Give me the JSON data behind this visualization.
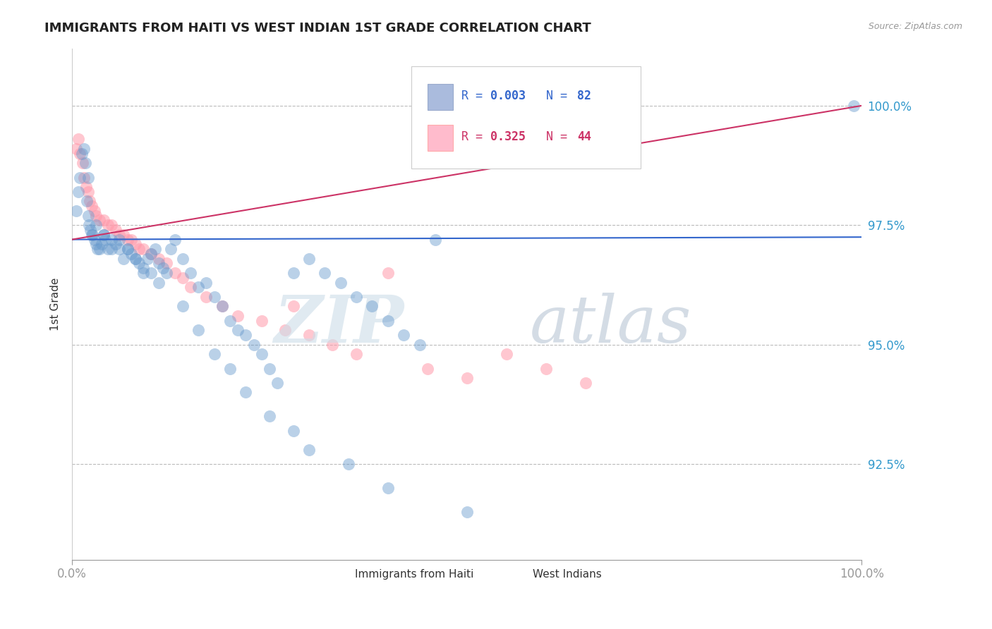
{
  "title": "IMMIGRANTS FROM HAITI VS WEST INDIAN 1ST GRADE CORRELATION CHART",
  "source_text": "Source: ZipAtlas.com",
  "ylabel": "1st Grade",
  "xlim": [
    0.0,
    100.0
  ],
  "ylim": [
    90.5,
    101.2
  ],
  "yticks": [
    92.5,
    95.0,
    97.5,
    100.0
  ],
  "ytick_labels": [
    "92.5%",
    "95.0%",
    "97.5%",
    "100.0%"
  ],
  "xticks": [
    0.0,
    100.0
  ],
  "xtick_labels": [
    "0.0%",
    "100.0%"
  ],
  "blue_color": "#6699CC",
  "pink_color": "#FF99AA",
  "trend_blue_color": "#3366CC",
  "trend_pink_color": "#CC3366",
  "watermark_zip": "ZIP",
  "watermark_atlas": "atlas",
  "legend_label1": "Immigrants from Haiti",
  "legend_label2": "West Indians",
  "blue_scatter_x": [
    0.5,
    0.8,
    1.0,
    1.2,
    1.5,
    1.7,
    1.9,
    2.0,
    2.1,
    2.3,
    2.5,
    2.6,
    2.8,
    3.0,
    3.2,
    3.5,
    3.7,
    4.0,
    4.2,
    4.5,
    5.0,
    5.5,
    6.0,
    6.5,
    7.0,
    7.5,
    8.0,
    8.5,
    9.0,
    9.5,
    10.0,
    10.5,
    11.0,
    11.5,
    12.0,
    12.5,
    13.0,
    14.0,
    15.0,
    16.0,
    17.0,
    18.0,
    19.0,
    20.0,
    21.0,
    22.0,
    23.0,
    24.0,
    25.0,
    26.0,
    28.0,
    30.0,
    32.0,
    34.0,
    36.0,
    38.0,
    40.0,
    42.0,
    44.0,
    46.0,
    2.0,
    3.0,
    4.0,
    5.0,
    6.0,
    7.0,
    8.0,
    9.0,
    10.0,
    11.0,
    14.0,
    16.0,
    18.0,
    20.0,
    22.0,
    25.0,
    28.0,
    30.0,
    35.0,
    40.0,
    50.0,
    99.0
  ],
  "blue_scatter_y": [
    97.8,
    98.2,
    98.5,
    99.0,
    99.1,
    98.8,
    98.0,
    97.7,
    97.5,
    97.4,
    97.3,
    97.3,
    97.2,
    97.1,
    97.0,
    97.0,
    97.1,
    97.3,
    97.2,
    97.0,
    97.0,
    97.1,
    97.2,
    96.8,
    97.0,
    96.9,
    96.8,
    96.7,
    96.5,
    96.8,
    96.9,
    97.0,
    96.7,
    96.6,
    96.5,
    97.0,
    97.2,
    96.8,
    96.5,
    96.2,
    96.3,
    96.0,
    95.8,
    95.5,
    95.3,
    95.2,
    95.0,
    94.8,
    94.5,
    94.2,
    96.5,
    96.8,
    96.5,
    96.3,
    96.0,
    95.8,
    95.5,
    95.2,
    95.0,
    97.2,
    98.5,
    97.5,
    97.3,
    97.2,
    97.0,
    97.0,
    96.8,
    96.6,
    96.5,
    96.3,
    95.8,
    95.3,
    94.8,
    94.5,
    94.0,
    93.5,
    93.2,
    92.8,
    92.5,
    92.0,
    91.5,
    100.0
  ],
  "pink_scatter_x": [
    0.5,
    0.8,
    1.0,
    1.3,
    1.5,
    1.8,
    2.0,
    2.2,
    2.5,
    2.8,
    3.0,
    3.5,
    4.0,
    4.5,
    5.0,
    5.5,
    6.0,
    6.5,
    7.0,
    7.5,
    8.0,
    8.5,
    9.0,
    10.0,
    11.0,
    12.0,
    13.0,
    14.0,
    15.0,
    17.0,
    19.0,
    21.0,
    24.0,
    27.0,
    30.0,
    33.0,
    36.0,
    40.0,
    45.0,
    50.0,
    55.0,
    60.0,
    65.0,
    28.0
  ],
  "pink_scatter_y": [
    99.1,
    99.3,
    99.0,
    98.8,
    98.5,
    98.3,
    98.2,
    98.0,
    97.9,
    97.8,
    97.7,
    97.6,
    97.6,
    97.5,
    97.5,
    97.4,
    97.3,
    97.3,
    97.2,
    97.2,
    97.1,
    97.0,
    97.0,
    96.9,
    96.8,
    96.7,
    96.5,
    96.4,
    96.2,
    96.0,
    95.8,
    95.6,
    95.5,
    95.3,
    95.2,
    95.0,
    94.8,
    96.5,
    94.5,
    94.3,
    94.8,
    94.5,
    94.2,
    95.8
  ],
  "blue_trend_y_start": 97.2,
  "blue_trend_y_end": 97.25,
  "pink_trend_x_start": 0.0,
  "pink_trend_y_start": 97.2,
  "pink_trend_x_end": 100.0,
  "pink_trend_y_end": 100.0
}
